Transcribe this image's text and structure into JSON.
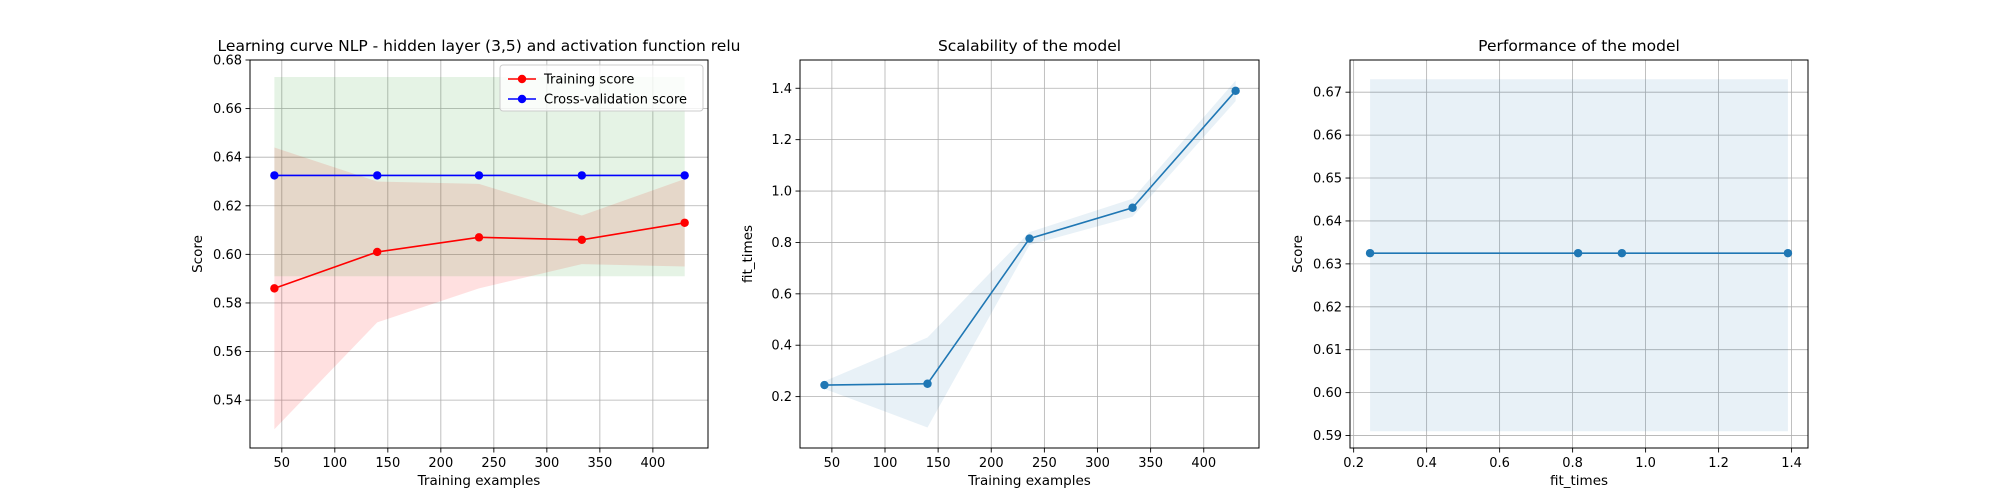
{
  "chart_data": [
    {
      "type": "line",
      "title": "Learning curve NLP - hidden layer (3,5) and activation function relu",
      "xlabel": "Training examples",
      "ylabel": "Score",
      "xlim": [
        20,
        452
      ],
      "ylim": [
        0.5203,
        0.68
      ],
      "xticks": [
        50,
        100,
        150,
        200,
        250,
        300,
        350,
        400
      ],
      "yticks": [
        0.54,
        0.56,
        0.58,
        0.6,
        0.62,
        0.64,
        0.66,
        0.68
      ],
      "ytick_labels": [
        "0.54",
        "0.56",
        "0.58",
        "0.60",
        "0.62",
        "0.64",
        "0.66",
        "0.68"
      ],
      "grid": true,
      "legend_position": "upper right",
      "x": [
        43,
        140,
        236,
        333,
        430
      ],
      "series": [
        {
          "name": "Training score",
          "color": "#ff0000",
          "values": [
            0.586,
            0.601,
            0.607,
            0.606,
            0.613
          ],
          "band_low": [
            0.528,
            0.572,
            0.586,
            0.596,
            0.595
          ],
          "band_high": [
            0.644,
            0.63,
            0.629,
            0.616,
            0.631
          ]
        },
        {
          "name": "Cross-validation score",
          "color": "#0000ff",
          "values": [
            0.6325,
            0.6325,
            0.6325,
            0.6325,
            0.6325
          ],
          "band_low": [
            0.591,
            0.591,
            0.591,
            0.591,
            0.591
          ],
          "band_high": [
            0.673,
            0.673,
            0.673,
            0.673,
            0.673
          ]
        }
      ]
    },
    {
      "type": "line",
      "title": "Scalability of the model",
      "xlabel": "Training examples",
      "ylabel": "fit_times",
      "xlim": [
        20,
        452
      ],
      "ylim": [
        0.0,
        1.51
      ],
      "xticks": [
        50,
        100,
        150,
        200,
        250,
        300,
        350,
        400
      ],
      "yticks": [
        0.2,
        0.4,
        0.6,
        0.8,
        1.0,
        1.2,
        1.4
      ],
      "ytick_labels": [
        "0.2",
        "0.4",
        "0.6",
        "0.8",
        "1.0",
        "1.2",
        "1.4"
      ],
      "grid": true,
      "x": [
        43,
        140,
        236,
        333,
        430
      ],
      "series": [
        {
          "color": "#1f77b4",
          "values": [
            0.245,
            0.25,
            0.815,
            0.935,
            1.39
          ],
          "band_low": [
            0.23,
            0.08,
            0.79,
            0.9,
            1.35
          ],
          "band_high": [
            0.26,
            0.43,
            0.84,
            0.97,
            1.43
          ]
        }
      ]
    },
    {
      "type": "line",
      "title": "Performance of the model",
      "xlabel": "fit_times",
      "ylabel": "Score",
      "xlim": [
        0.19,
        1.445
      ],
      "ylim": [
        0.5871,
        0.6775
      ],
      "xticks": [
        0.2,
        0.4,
        0.6,
        0.8,
        1.0,
        1.2,
        1.4
      ],
      "xtick_labels": [
        "0.2",
        "0.4",
        "0.6",
        "0.8",
        "1.0",
        "1.2",
        "1.4"
      ],
      "yticks": [
        0.59,
        0.6,
        0.61,
        0.62,
        0.63,
        0.64,
        0.65,
        0.66,
        0.67
      ],
      "ytick_labels": [
        "0.59",
        "0.60",
        "0.61",
        "0.62",
        "0.63",
        "0.64",
        "0.65",
        "0.66",
        "0.67"
      ],
      "grid": true,
      "x": [
        0.245,
        0.815,
        0.935,
        1.39
      ],
      "series": [
        {
          "color": "#1f77b4",
          "values": [
            0.6325,
            0.6325,
            0.6325,
            0.6325
          ],
          "band_low": [
            0.591,
            0.591,
            0.591,
            0.591
          ],
          "band_high": [
            0.673,
            0.673,
            0.673,
            0.673
          ]
        }
      ]
    }
  ]
}
